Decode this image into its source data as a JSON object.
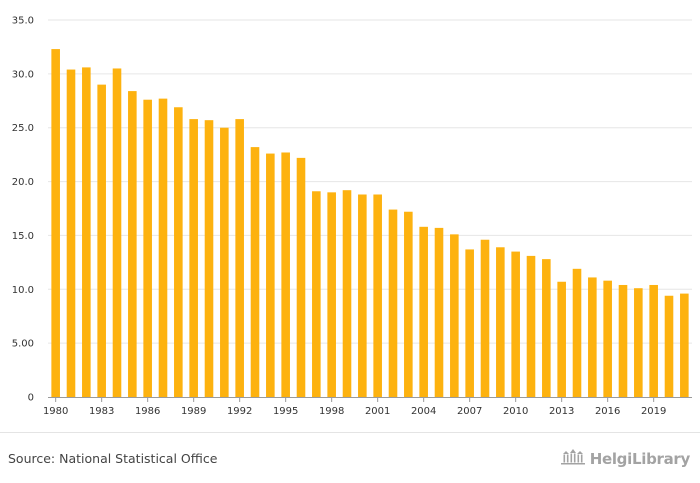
{
  "chart_data": {
    "type": "bar",
    "title": "",
    "xlabel": "",
    "ylabel": "",
    "ylim": [
      0,
      35
    ],
    "yticks": [
      "0",
      "5.00",
      "10.0",
      "15.0",
      "20.0",
      "25.0",
      "30.0",
      "35.0"
    ],
    "ytick_values": [
      0,
      5,
      10,
      15,
      20,
      25,
      30,
      35
    ],
    "xtick_labels": [
      "1980",
      "1983",
      "1986",
      "1989",
      "1992",
      "1995",
      "1998",
      "2001",
      "2004",
      "2007",
      "2010",
      "2013",
      "2016",
      "2019"
    ],
    "grid": true,
    "color": "#FDB20F",
    "categories": [
      "1980",
      "1981",
      "1982",
      "1983",
      "1984",
      "1985",
      "1986",
      "1987",
      "1988",
      "1989",
      "1990",
      "1991",
      "1992",
      "1993",
      "1994",
      "1995",
      "1996",
      "1997",
      "1998",
      "1999",
      "2000",
      "2001",
      "2002",
      "2003",
      "2004",
      "2005",
      "2006",
      "2007",
      "2008",
      "2009",
      "2010",
      "2011",
      "2012",
      "2013",
      "2014",
      "2015",
      "2016",
      "2017",
      "2018",
      "2019",
      "2020",
      "2021"
    ],
    "values": [
      32.3,
      30.4,
      30.6,
      29.0,
      30.5,
      28.4,
      27.6,
      27.7,
      26.9,
      25.8,
      25.7,
      25.0,
      25.8,
      23.2,
      22.6,
      22.7,
      22.2,
      19.1,
      19.0,
      19.2,
      18.8,
      18.8,
      17.4,
      17.2,
      15.8,
      15.7,
      15.1,
      13.7,
      14.6,
      13.9,
      13.5,
      13.1,
      12.8,
      10.7,
      11.9,
      11.1,
      10.8,
      10.4,
      10.1,
      10.4,
      9.4,
      9.6
    ]
  },
  "footer": {
    "source": "Source: National Statistical Office",
    "logo_text": "HelgiLibrary",
    "logo_icon": "library-building-icon"
  }
}
